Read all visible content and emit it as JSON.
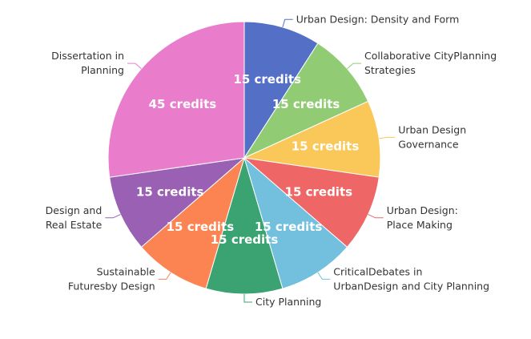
{
  "chart_data": {
    "type": "pie",
    "title": "",
    "categories": [
      "Urban Design: Density and Form",
      "Collaborative CityPlanning Strategies",
      "Urban Design Governance",
      "Urban Design: Place Making",
      "CriticalDebates in UrbanDesign and City Planning",
      "City Planning",
      "Sustainable Futuresby Design",
      "Design and Real Estate",
      "Dissertation in Planning"
    ],
    "label_lines": [
      [
        "Urban Design: Density and Form"
      ],
      [
        "Collaborative CityPlanning",
        "Strategies"
      ],
      [
        "Urban Design",
        "Governance"
      ],
      [
        "Urban Design:",
        "Place Making"
      ],
      [
        "CriticalDebates in",
        "UrbanDesign and City Planning"
      ],
      [
        "City Planning"
      ],
      [
        "Sustainable",
        "Futuresby Design"
      ],
      [
        "Design and",
        "Real Estate"
      ],
      [
        "Dissertation in",
        "Planning"
      ]
    ],
    "values": [
      15,
      15,
      15,
      15,
      15,
      15,
      15,
      15,
      45
    ],
    "data_labels": [
      "15 credits",
      "15 credits",
      "15 credits",
      "15 credits",
      "15 credits",
      "15 credits",
      "15 credits",
      "15 credits",
      "45 credits"
    ],
    "colors": [
      "#5470c6",
      "#91cc75",
      "#fac858",
      "#ee6666",
      "#73c0de",
      "#3ba272",
      "#fc8452",
      "#9a60b4",
      "#ea7ccc"
    ],
    "start_angle_deg": 90,
    "direction": "clockwise",
    "legend": "none"
  }
}
